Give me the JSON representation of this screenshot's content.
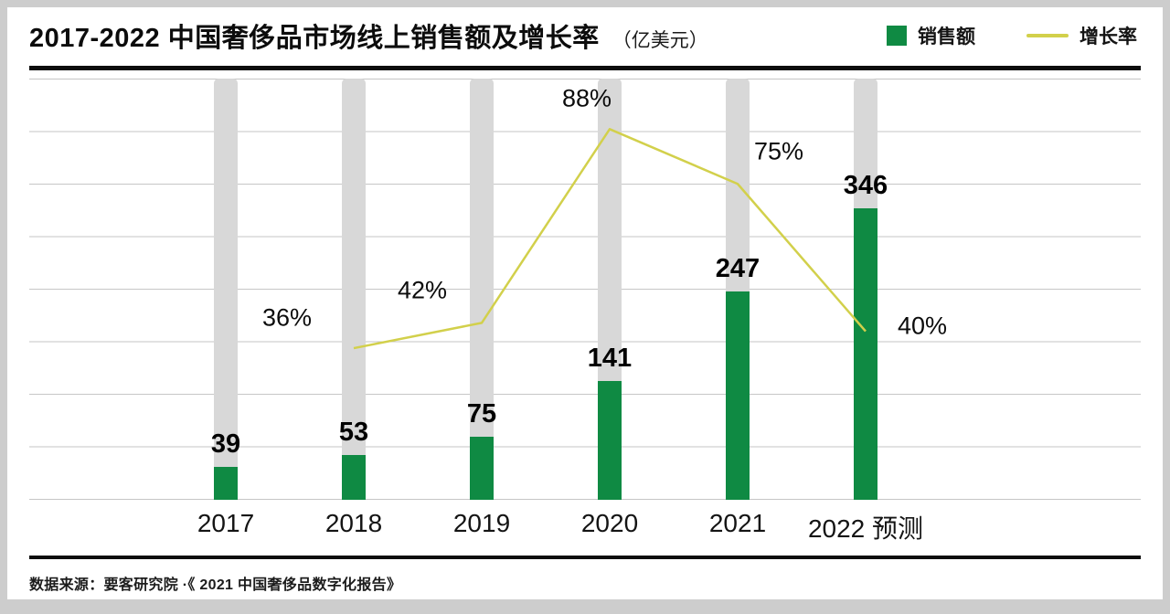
{
  "header": {
    "title": "2017-2022 中国奢侈品市场线上销售额及增长率",
    "unit": "（亿美元）",
    "legend": [
      {
        "label": "销售额",
        "swatch": "square-icon",
        "color": "#0f8a43"
      },
      {
        "label": "增长率",
        "swatch": "line-icon",
        "color": "#d2d04b"
      }
    ]
  },
  "page": {
    "source_note": "数据来源：要客研究院 ·《 2021 中国奢侈品数字化报告》"
  },
  "chart_data": {
    "type": "bar",
    "subtype": "bar-line-combo",
    "title": "2017-2022 中国奢侈品市场线上销售额及增长率",
    "unit": "亿美元",
    "categories": [
      "2017",
      "2018",
      "2019",
      "2020",
      "2021",
      "2022 预测"
    ],
    "series": [
      {
        "name": "销售额",
        "type": "bar",
        "color": "#0f8a43",
        "values": [
          39,
          53,
          75,
          141,
          247,
          346
        ]
      },
      {
        "name": "增长率",
        "type": "line",
        "color": "#d2d04b",
        "values": [
          null,
          36,
          42,
          88,
          75,
          40
        ],
        "point_labels": [
          null,
          "36%",
          "42%",
          "88%",
          "75%",
          "40%"
        ]
      }
    ],
    "ylim": [
      0,
      500
    ],
    "y2lim": [
      0,
      100
    ],
    "grid": true,
    "legend_position": "top-right",
    "background_pillars": true,
    "pillar_color": "#d8d8d8",
    "source": "数据来源：要客研究院 ·《 2021 中国奢侈品数字化报告》"
  }
}
